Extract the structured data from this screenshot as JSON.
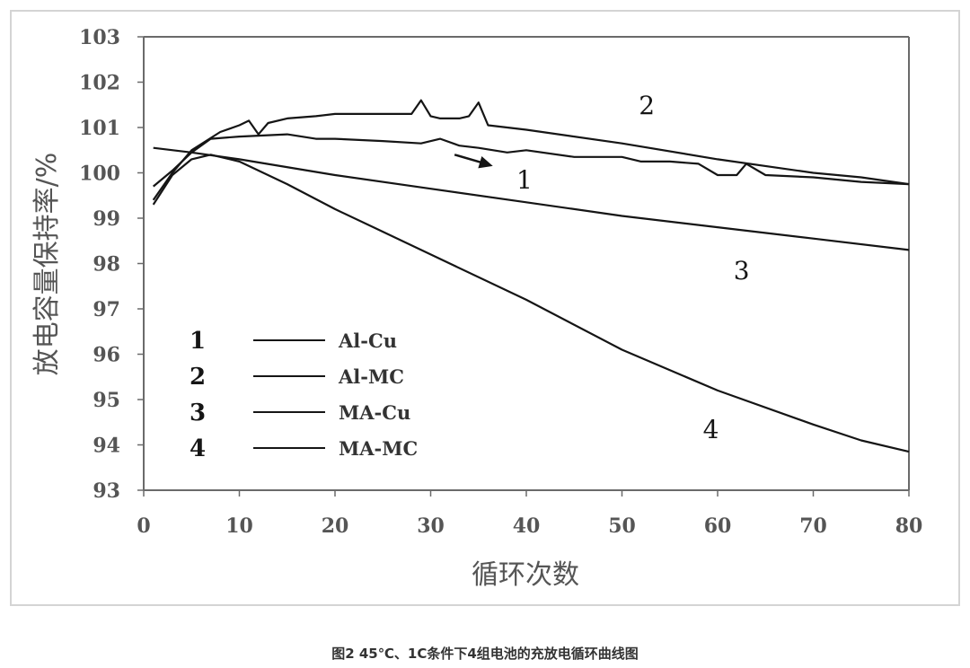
{
  "chart_data": {
    "type": "line",
    "title": "",
    "xlabel": "循环次数",
    "ylabel": "放电容量保持率/%",
    "xlim": [
      0,
      80
    ],
    "ylim": [
      93,
      103
    ],
    "xticks": [
      0,
      10,
      20,
      30,
      40,
      50,
      60,
      70,
      80
    ],
    "yticks": [
      93,
      94,
      95,
      96,
      97,
      98,
      99,
      100,
      101,
      102,
      103
    ],
    "grid": false,
    "legend_position": "bottom-left",
    "series": [
      {
        "name": "Al-Cu",
        "number": "1",
        "x": [
          1,
          3,
          5,
          7,
          10,
          15,
          18,
          20,
          25,
          29,
          31,
          33,
          35,
          38,
          40,
          45,
          50,
          52,
          55,
          58,
          60,
          62,
          63,
          65,
          70,
          75,
          80
        ],
        "y": [
          99.7,
          100.05,
          100.45,
          100.75,
          100.8,
          100.85,
          100.75,
          100.75,
          100.7,
          100.65,
          100.75,
          100.6,
          100.55,
          100.45,
          100.5,
          100.35,
          100.35,
          100.25,
          100.25,
          100.2,
          99.95,
          99.95,
          100.2,
          99.95,
          99.9,
          99.8,
          99.75
        ]
      },
      {
        "name": "Al-MC",
        "number": "2",
        "x": [
          1,
          3,
          5,
          8,
          10,
          11,
          12,
          13,
          15,
          18,
          20,
          25,
          28,
          29,
          30,
          31,
          33,
          34,
          35,
          36,
          40,
          50,
          60,
          70,
          75,
          80
        ],
        "y": [
          99.4,
          100.0,
          100.5,
          100.9,
          101.05,
          101.15,
          100.85,
          101.1,
          101.2,
          101.25,
          101.3,
          101.3,
          101.3,
          101.6,
          101.25,
          101.2,
          101.2,
          101.25,
          101.55,
          101.05,
          100.95,
          100.65,
          100.3,
          100.0,
          99.9,
          99.75
        ]
      },
      {
        "name": "MA-Cu",
        "number": "3",
        "x": [
          1,
          5,
          10,
          20,
          30,
          40,
          50,
          60,
          70,
          80
        ],
        "y": [
          100.55,
          100.45,
          100.3,
          99.95,
          99.65,
          99.35,
          99.05,
          98.8,
          98.55,
          98.3
        ]
      },
      {
        "name": "MA-MC",
        "number": "4",
        "x": [
          1,
          3,
          5,
          7,
          10,
          15,
          20,
          25,
          30,
          40,
          50,
          60,
          70,
          75,
          80
        ],
        "y": [
          99.3,
          99.95,
          100.3,
          100.4,
          100.25,
          99.75,
          99.2,
          98.7,
          98.2,
          97.2,
          96.1,
          95.2,
          94.45,
          94.1,
          93.85
        ]
      }
    ],
    "annotations": [
      {
        "text": "1",
        "x": 39.8,
        "y": 99.65
      },
      {
        "text": "2",
        "x": 52.6,
        "y": 101.3
      },
      {
        "text": "3",
        "x": 62.5,
        "y": 97.65
      },
      {
        "text": "4",
        "x": 59.3,
        "y": 94.15
      }
    ],
    "arrow": {
      "from": [
        32.5,
        100.4
      ],
      "to": [
        36.5,
        100.15
      ]
    }
  },
  "caption": "图2 45℃、1C条件下4组电池的充放电循环曲线图"
}
